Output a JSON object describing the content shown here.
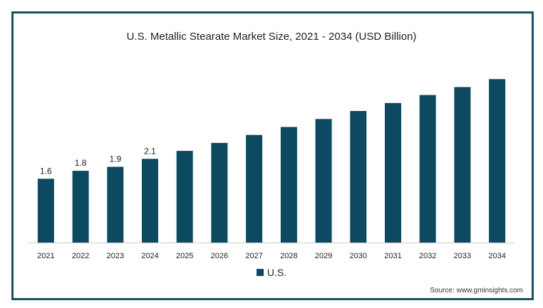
{
  "chart_data": {
    "type": "bar",
    "title": "U.S. Metallic Stearate Market Size, 2021 - 2034 (USD Billion)",
    "categories": [
      "2021",
      "2022",
      "2023",
      "2024",
      "2025",
      "2026",
      "2027",
      "2028",
      "2029",
      "2030",
      "2031",
      "2032",
      "2033",
      "2034"
    ],
    "series": [
      {
        "name": "U.S.",
        "values": [
          1.6,
          1.8,
          1.9,
          2.1,
          2.3,
          2.5,
          2.7,
          2.9,
          3.1,
          3.3,
          3.5,
          3.7,
          3.9,
          4.1
        ],
        "data_labels": [
          "1.6",
          "1.8",
          "1.9",
          "2.1",
          "",
          "",
          "",
          "",
          "",
          "",
          "",
          "",
          "",
          ""
        ]
      }
    ],
    "xlabel": "",
    "ylabel": "",
    "ylim": [
      0,
      4.3
    ],
    "grid": false,
    "legend_position": "bottom"
  },
  "source": "Source: www.gminsights.com",
  "colors": {
    "bar": "#0d4a62",
    "frame": "#1d4f63",
    "axis": "#cccccc"
  }
}
